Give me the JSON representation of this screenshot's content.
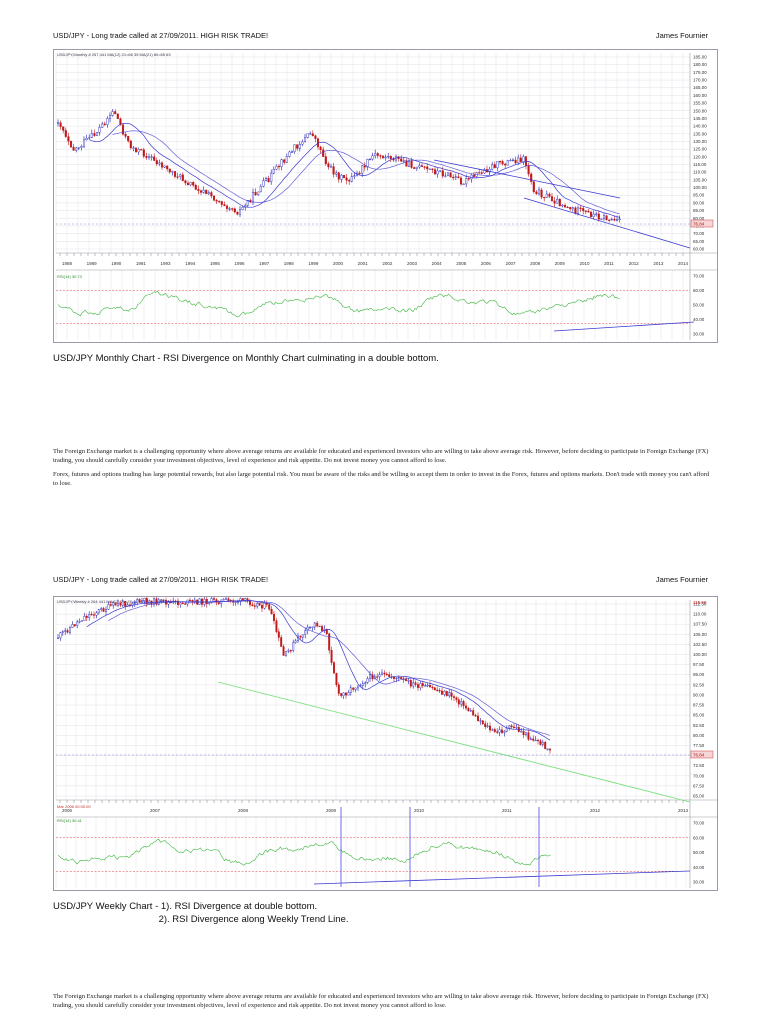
{
  "page1": {
    "header_left": "USD/JPY - Long trade called at 27/09/2011. HIGH RISK TRADE!",
    "header_right": "James Fournier",
    "chart_label": "USDJPY,Monthly  #  257.441 MA(12) 21=66 35 MA(21) 80=65 63",
    "rsi_label": "RSI(14) 30.73",
    "price_ticks": [
      "185.00",
      "180.00",
      "175.00",
      "170.00",
      "165.00",
      "160.00",
      "155.00",
      "150.00",
      "145.00",
      "140.00",
      "135.00",
      "130.00",
      "125.00",
      "120.00",
      "115.00",
      "110.00",
      "105.00",
      "100.00",
      "95.00",
      "90.00",
      "85.00",
      "80.00",
      "75.00",
      "70.00",
      "65.00",
      "60.00"
    ],
    "rsi_ticks": [
      "70.00",
      "60.00",
      "50.00",
      "40.00",
      "30.00"
    ],
    "years": [
      "1988",
      "1989",
      "1990",
      "1991",
      "1993",
      "1994",
      "1995",
      "1996",
      "1997",
      "1998",
      "1999",
      "2000",
      "2001",
      "2002",
      "2003",
      "2004",
      "2005",
      "2006",
      "2007",
      "2008",
      "2009",
      "2010",
      "2011",
      "2012",
      "2013",
      "2014"
    ],
    "current_price": "76.84",
    "rsi_value": "30.73",
    "caption": "USD/JPY Monthly Chart - RSI Divergence on Monthly Chart culminating in a double bottom."
  },
  "disclaimer": {
    "p1": "The Foreign Exchange market is a challenging opportunity where above average returns are available for educated and experienced investors who are willing to take above average risk. However, before deciding to participate in Foreign Exchange (FX) trading, you should carefully consider your investment objectives, level of experience and risk appetite. Do not invest money you cannot afford to lose.",
    "p2": "Forex, futures and options trading has large potential rewards, but also large potential risk. You must be aware of the risks and be willing to accept them in order to invest in the Forex, futures and options markets. Don't trade with money you can't afford to lose."
  },
  "page2": {
    "header_left": "USD/JPY - Long trade called at 27/09/2011. HIGH RISK TRADE!",
    "header_right": "James Fournier",
    "chart_label": "USDJPY,Weekly  #  264 441 MA(12) 21=79.48 MA(21) 53=80.08",
    "rsi_label": "RSI(14) 30.41",
    "price_ticks": [
      "112.50",
      "110.00",
      "107.50",
      "105.00",
      "102.50",
      "100.00",
      "97.50",
      "95.00",
      "92.50",
      "90.00",
      "87.50",
      "85.00",
      "82.50",
      "80.00",
      "77.50",
      "75.00",
      "72.50",
      "70.00",
      "67.50",
      "65.00"
    ],
    "rsi_ticks": [
      "70.00",
      "60.00",
      "50.00",
      "40.00",
      "30.00"
    ],
    "years": [
      "2006",
      "2007",
      "2008",
      "2009",
      "2010",
      "2011",
      "2012",
      "2013"
    ],
    "current_price": "76.84",
    "top_price": "115.50",
    "date_label": "Mar 2006 00:00:00",
    "caption_line1": "USD/JPY Weekly Chart - 1). RSI Divergence at double bottom.",
    "caption_line2": "                                        2). RSI Divergence along Weekly Trend Line."
  },
  "disclaimer2": {
    "p1": "The Foreign Exchange market is a challenging opportunity where above average returns are available for educated and experienced investors who are willing to take above average risk. However, before deciding to participate in Foreign Exchange (FX) trading, you should carefully consider your investment objectives, level of experience and risk appetite. Do not invest money you cannot afford to lose."
  },
  "colors": {
    "bull_candle": "#1b1bb8",
    "bear_candle": "#c01818",
    "ma_line": "#3a3ad0",
    "rsi_line": "#3db53d",
    "trend_green": "#7ee07e",
    "grid": "#e2e2ea",
    "level_red": "#e04040"
  }
}
